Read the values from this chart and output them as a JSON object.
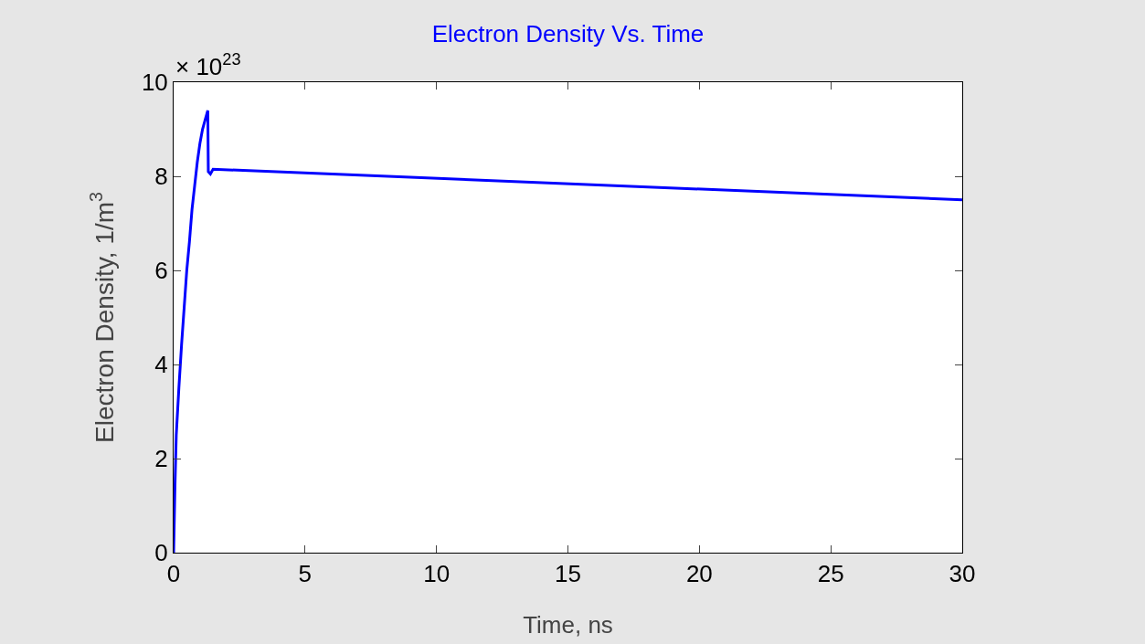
{
  "chart_data": {
    "type": "line",
    "title": "Electron Density Vs. Time",
    "xlabel": "Time, ns",
    "ylabel": "Electron Density, 1/m$^{3}$",
    "annotations": [
      "× 10$^{23}$"
    ],
    "x": [
      0,
      0.05,
      0.1,
      0.2,
      0.3,
      0.4,
      0.5,
      0.6,
      0.7,
      0.8,
      0.9,
      1.0,
      1.1,
      1.2,
      1.3,
      1.32,
      1.4,
      1.5,
      30
    ],
    "series": [
      {
        "color": "#0000ff",
        "values": [
          0,
          1.4,
          2.5,
          3.5,
          4.4,
          5.2,
          6.0,
          6.6,
          7.3,
          7.8,
          8.3,
          8.7,
          9.0,
          9.2,
          9.4,
          8.1,
          8.05,
          8.15,
          7.5
        ]
      }
    ],
    "xlim": [
      0,
      30
    ],
    "xticks": [
      0,
      5,
      10,
      15,
      20,
      25,
      30
    ],
    "ylim": [
      0,
      10
    ],
    "yticks": [
      0,
      2,
      4,
      6,
      8,
      10
    ],
    "grid": false,
    "marker": "none",
    "line_style": "solid"
  }
}
